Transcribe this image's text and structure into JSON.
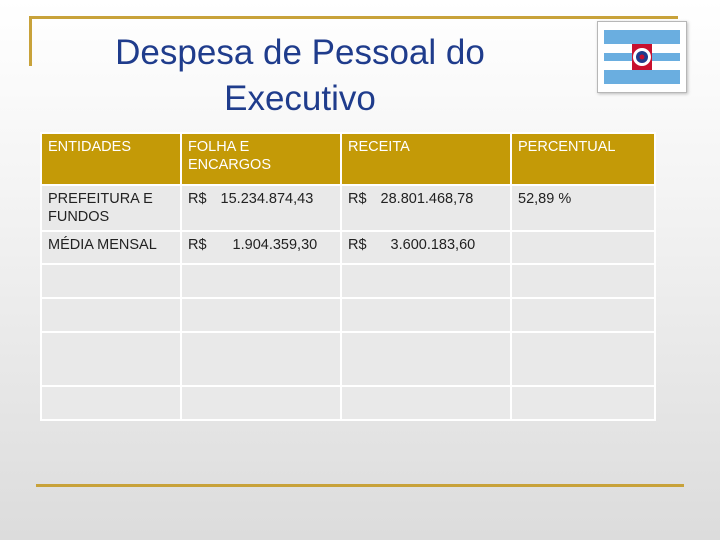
{
  "slide": {
    "title_line1": "Despesa de Pessoal do",
    "title_line2": "Executivo"
  },
  "flag": {
    "icon": "flag-icon",
    "colors": {
      "blue": "#6aaee0",
      "white": "#ffffff",
      "red": "#c8102e"
    }
  },
  "table": {
    "headers": [
      "ENTIDADES",
      "FOLHA E ENCARGOS",
      "RECEITA",
      "PERCENTUAL"
    ],
    "rows": [
      {
        "entidade": "PREFEITURA E FUNDOS",
        "folha_currency": "R$",
        "folha_value": "15.234.874,43",
        "receita_currency": "R$",
        "receita_value": "28.801.468,78",
        "percentual": "52,89 %"
      },
      {
        "entidade": "MÉDIA MENSAL",
        "folha_currency": "R$",
        "folha_value": "1.904.359,30",
        "receita_currency": "R$",
        "receita_value": "3.600.183,60",
        "percentual": ""
      }
    ]
  },
  "colors": {
    "accent_gold": "#c49a07",
    "title_blue": "#1f3c8c",
    "cell_gray": "#e9e9e9"
  }
}
